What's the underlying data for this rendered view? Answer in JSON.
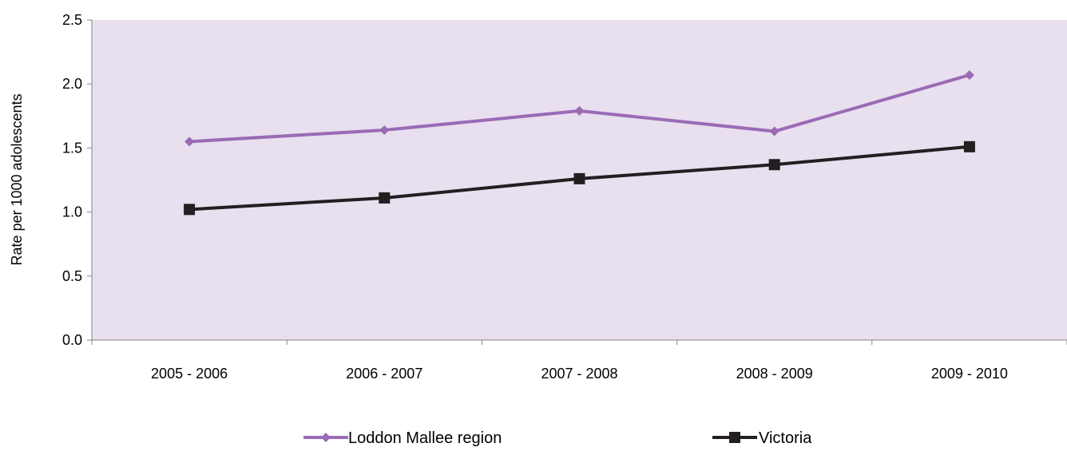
{
  "chart_data": {
    "type": "line",
    "title": "",
    "xlabel": "",
    "ylabel": "Rate per 1000 adolescents",
    "categories": [
      "2005 - 2006",
      "2006 - 2007",
      "2007 - 2008",
      "2008 - 2009",
      "2009 - 2010"
    ],
    "ylim": [
      0,
      2.5
    ],
    "yticks": [
      "0.0",
      "0.5",
      "1.0",
      "1.5",
      "2.0",
      "2.5"
    ],
    "grid": false,
    "legend_position": "bottom",
    "plot_background": "#E8DFEF",
    "series": [
      {
        "name": "Loddon Mallee region",
        "values": [
          1.55,
          1.64,
          1.79,
          1.63,
          2.07
        ],
        "color": "#9A6BB5",
        "marker": "diamond"
      },
      {
        "name": "Victoria",
        "values": [
          1.02,
          1.11,
          1.26,
          1.37,
          1.51
        ],
        "color": "#231F20",
        "marker": "square"
      }
    ]
  }
}
